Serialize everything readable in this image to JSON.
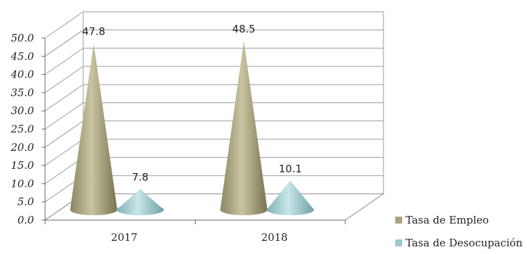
{
  "chart_data": {
    "type": "bar",
    "style": "3d-cone",
    "categories": [
      "2017",
      "2018"
    ],
    "series": [
      {
        "name": "Tasa de Empleo",
        "values": [
          47.8,
          48.5
        ],
        "color": "#a9a47f"
      },
      {
        "name": "Tasa de Desocupación",
        "values": [
          7.8,
          10.1
        ],
        "color": "#9cc8cc"
      }
    ],
    "yticks": [
      "0.0",
      "5.0",
      "10.0",
      "15.0",
      "20.0",
      "25.0",
      "30.0",
      "35.0",
      "40.0",
      "45.0",
      "50.0"
    ],
    "ylim": [
      0,
      50
    ],
    "data_labels": [
      "47.8",
      "7.8",
      "48.5",
      "10.1"
    ],
    "grid": true,
    "legend_position": "right"
  }
}
